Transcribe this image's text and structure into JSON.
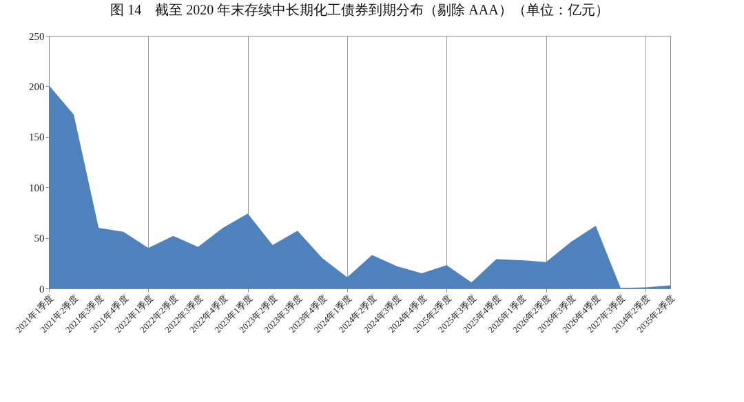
{
  "chart_data": {
    "type": "area",
    "title": "图 14　截至 2020 年末存续中长期化工债券到期分布（剔除 AAA）（单位：亿元）",
    "categories": [
      "2021年1季度",
      "2021年2季度",
      "2021年3季度",
      "2021年4季度",
      "2022年1季度",
      "2022年2季度",
      "2022年3季度",
      "2022年4季度",
      "2023年1季度",
      "2023年2季度",
      "2023年3季度",
      "2023年4季度",
      "2024年1季度",
      "2024年2季度",
      "2024年3季度",
      "2024年4季度",
      "2025年2季度",
      "2025年3季度",
      "2025年4季度",
      "2026年1季度",
      "2026年2季度",
      "2026年3季度",
      "2026年4季度",
      "2027年3季度",
      "2034年2季度",
      "2035年2季度"
    ],
    "series": [
      {
        "color": "#4f81bd",
        "values": [
          201,
          172,
          60,
          56,
          40,
          52,
          41,
          60,
          74,
          43,
          57,
          30,
          11,
          33,
          22,
          15,
          23,
          6,
          29,
          28,
          26,
          46,
          62,
          0.5,
          1,
          3
        ]
      }
    ],
    "ylim": [
      0,
      250
    ],
    "yticks": [
      0,
      50,
      100,
      150,
      200,
      250
    ],
    "grid": "x"
  }
}
